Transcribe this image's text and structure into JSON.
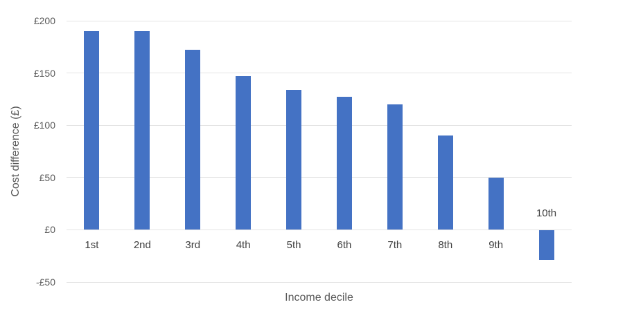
{
  "chart_data": {
    "type": "bar",
    "title": "",
    "xlabel": "Income decile",
    "ylabel": "Cost difference (£)",
    "categories": [
      "1st",
      "2nd",
      "3rd",
      "4th",
      "5th",
      "6th",
      "7th",
      "8th",
      "9th",
      "10th"
    ],
    "values": [
      190,
      190,
      172,
      147,
      134,
      127,
      120,
      90,
      50,
      -28
    ],
    "ylim": [
      -50,
      200
    ],
    "yticks": [
      {
        "value": 200,
        "label": "£200"
      },
      {
        "value": 150,
        "label": "£150"
      },
      {
        "value": 100,
        "label": "£100"
      },
      {
        "value": 50,
        "label": "£50"
      },
      {
        "value": 0,
        "label": "£0"
      },
      {
        "value": -50,
        "label": "-£50"
      }
    ],
    "grid": true,
    "legend": "none",
    "colors": {
      "bar": "#4472C4",
      "grid": "#e3e3e3",
      "axis_text": "#595959",
      "category_text": "#404040"
    }
  }
}
